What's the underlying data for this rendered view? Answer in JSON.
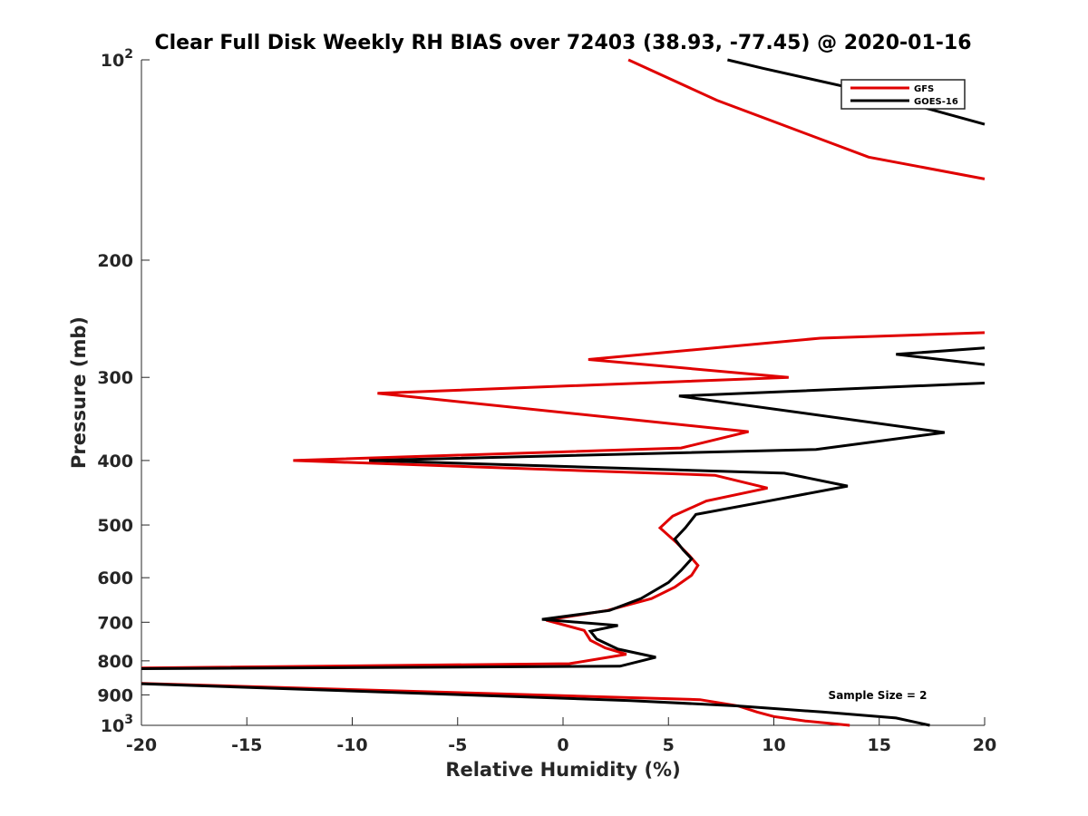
{
  "chart_data": {
    "type": "line",
    "title": "Clear Full Disk Weekly RH BIAS over 72403 (38.93, -77.45) @ 2020-01-16",
    "xlabel": "Relative Humidity (%)",
    "ylabel": "Pressure (mb)",
    "xlim": [
      -20,
      20
    ],
    "ylim": [
      100,
      1000
    ],
    "y_scale": "log",
    "y_reversed": true,
    "grid": false,
    "legend_position": "top-right",
    "x_ticks": [
      -20,
      -15,
      -10,
      -5,
      0,
      5,
      10,
      15,
      20
    ],
    "x_tick_labels": [
      "-20",
      "-15",
      "-10",
      "-5",
      "0",
      "5",
      "10",
      "15",
      "20"
    ],
    "y_ticks": [
      100,
      200,
      300,
      400,
      500,
      600,
      700,
      800,
      900,
      1000
    ],
    "y_tick_labels": [
      {
        "base": "10",
        "exp": "2"
      },
      {
        "base": "200",
        "exp": ""
      },
      {
        "base": "300",
        "exp": ""
      },
      {
        "base": "400",
        "exp": ""
      },
      {
        "base": "500",
        "exp": ""
      },
      {
        "base": "600",
        "exp": ""
      },
      {
        "base": "700",
        "exp": ""
      },
      {
        "base": "800",
        "exp": ""
      },
      {
        "base": "900",
        "exp": ""
      },
      {
        "base": "10",
        "exp": "3"
      }
    ],
    "annotation": "Sample Size = 2",
    "series": [
      {
        "name": "GFS",
        "color": "#e00000",
        "points": [
          [
            3.1,
            100
          ],
          [
            7.3,
            115
          ],
          [
            14.5,
            140
          ],
          [
            20.0,
            151
          ],
          [
            null,
            null
          ],
          [
            20.0,
            257
          ],
          [
            12.2,
            262
          ],
          [
            1.2,
            282
          ],
          [
            10.7,
            300
          ],
          [
            -8.8,
            317
          ],
          [
            8.8,
            362
          ],
          [
            5.6,
            383
          ],
          [
            -12.8,
            400
          ],
          [
            7.2,
            421
          ],
          [
            9.7,
            440
          ],
          [
            6.8,
            460
          ],
          [
            5.2,
            485
          ],
          [
            4.6,
            505
          ],
          [
            5.4,
            532
          ],
          [
            6.0,
            556
          ],
          [
            6.4,
            575
          ],
          [
            6.1,
            595
          ],
          [
            5.3,
            620
          ],
          [
            4.2,
            645
          ],
          [
            2.1,
            672
          ],
          [
            -0.8,
            695
          ],
          [
            1.0,
            720
          ],
          [
            1.3,
            745
          ],
          [
            2.0,
            765
          ],
          [
            3.0,
            782
          ],
          [
            0.3,
            808
          ],
          [
            -20.0,
            820
          ],
          [
            null,
            null
          ],
          [
            -20.0,
            865
          ],
          [
            6.5,
            915
          ],
          [
            8.3,
            935
          ],
          [
            9.2,
            955
          ],
          [
            10.0,
            970
          ],
          [
            11.5,
            985
          ],
          [
            13.6,
            1000
          ]
        ]
      },
      {
        "name": "GOES-16",
        "color": "#000000",
        "points": [
          [
            7.8,
            100
          ],
          [
            9.5,
            103
          ],
          [
            14.1,
            111
          ],
          [
            20.0,
            125
          ],
          [
            null,
            null
          ],
          [
            20.0,
            271
          ],
          [
            15.8,
            277
          ],
          [
            20.0,
            287
          ],
          [
            null,
            null
          ],
          [
            20.0,
            306
          ],
          [
            5.5,
            320
          ],
          [
            18.1,
            363
          ],
          [
            12.0,
            385
          ],
          [
            -9.2,
            400
          ],
          [
            10.5,
            418
          ],
          [
            13.5,
            437
          ],
          [
            9.6,
            461
          ],
          [
            6.3,
            482
          ],
          [
            5.8,
            505
          ],
          [
            5.3,
            525
          ],
          [
            5.7,
            545
          ],
          [
            6.1,
            562
          ],
          [
            5.6,
            585
          ],
          [
            5.0,
            610
          ],
          [
            3.7,
            645
          ],
          [
            2.2,
            672
          ],
          [
            -1.0,
            693
          ],
          [
            2.6,
            708
          ],
          [
            1.3,
            722
          ],
          [
            1.6,
            742
          ],
          [
            2.6,
            768
          ],
          [
            4.4,
            790
          ],
          [
            2.7,
            815
          ],
          [
            -20.0,
            822
          ],
          [
            null,
            null
          ],
          [
            -20.0,
            866
          ],
          [
            3.2,
            918
          ],
          [
            8.3,
            935
          ],
          [
            12.3,
            955
          ],
          [
            15.8,
            975
          ],
          [
            17.4,
            1000
          ]
        ]
      }
    ]
  }
}
